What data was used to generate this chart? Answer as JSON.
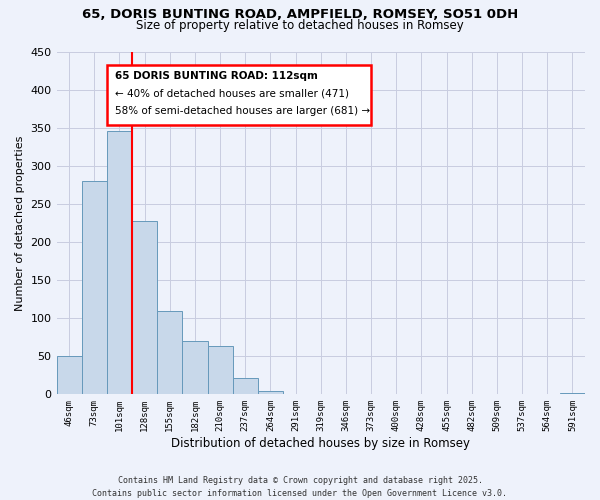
{
  "title": "65, DORIS BUNTING ROAD, AMPFIELD, ROMSEY, SO51 0DH",
  "subtitle": "Size of property relative to detached houses in Romsey",
  "xlabel": "Distribution of detached houses by size in Romsey",
  "ylabel": "Number of detached properties",
  "bar_color": "#c8d8ea",
  "bar_edge_color": "#6699bb",
  "background_color": "#eef2fb",
  "grid_color": "#c8cce0",
  "tick_labels": [
    "46sqm",
    "73sqm",
    "101sqm",
    "128sqm",
    "155sqm",
    "182sqm",
    "210sqm",
    "237sqm",
    "264sqm",
    "291sqm",
    "319sqm",
    "346sqm",
    "373sqm",
    "400sqm",
    "428sqm",
    "455sqm",
    "482sqm",
    "509sqm",
    "537sqm",
    "564sqm",
    "591sqm"
  ],
  "bar_heights": [
    50,
    280,
    345,
    228,
    110,
    70,
    63,
    22,
    5,
    0,
    0,
    0,
    0,
    0,
    0,
    0,
    0,
    0,
    0,
    0,
    2
  ],
  "ylim": [
    0,
    450
  ],
  "yticks": [
    0,
    50,
    100,
    150,
    200,
    250,
    300,
    350,
    400,
    450
  ],
  "red_line_x": 2.5,
  "annotation_title": "65 DORIS BUNTING ROAD: 112sqm",
  "annotation_line1": "← 40% of detached houses are smaller (471)",
  "annotation_line2": "58% of semi-detached houses are larger (681) →",
  "footer_line1": "Contains HM Land Registry data © Crown copyright and database right 2025.",
  "footer_line2": "Contains public sector information licensed under the Open Government Licence v3.0."
}
